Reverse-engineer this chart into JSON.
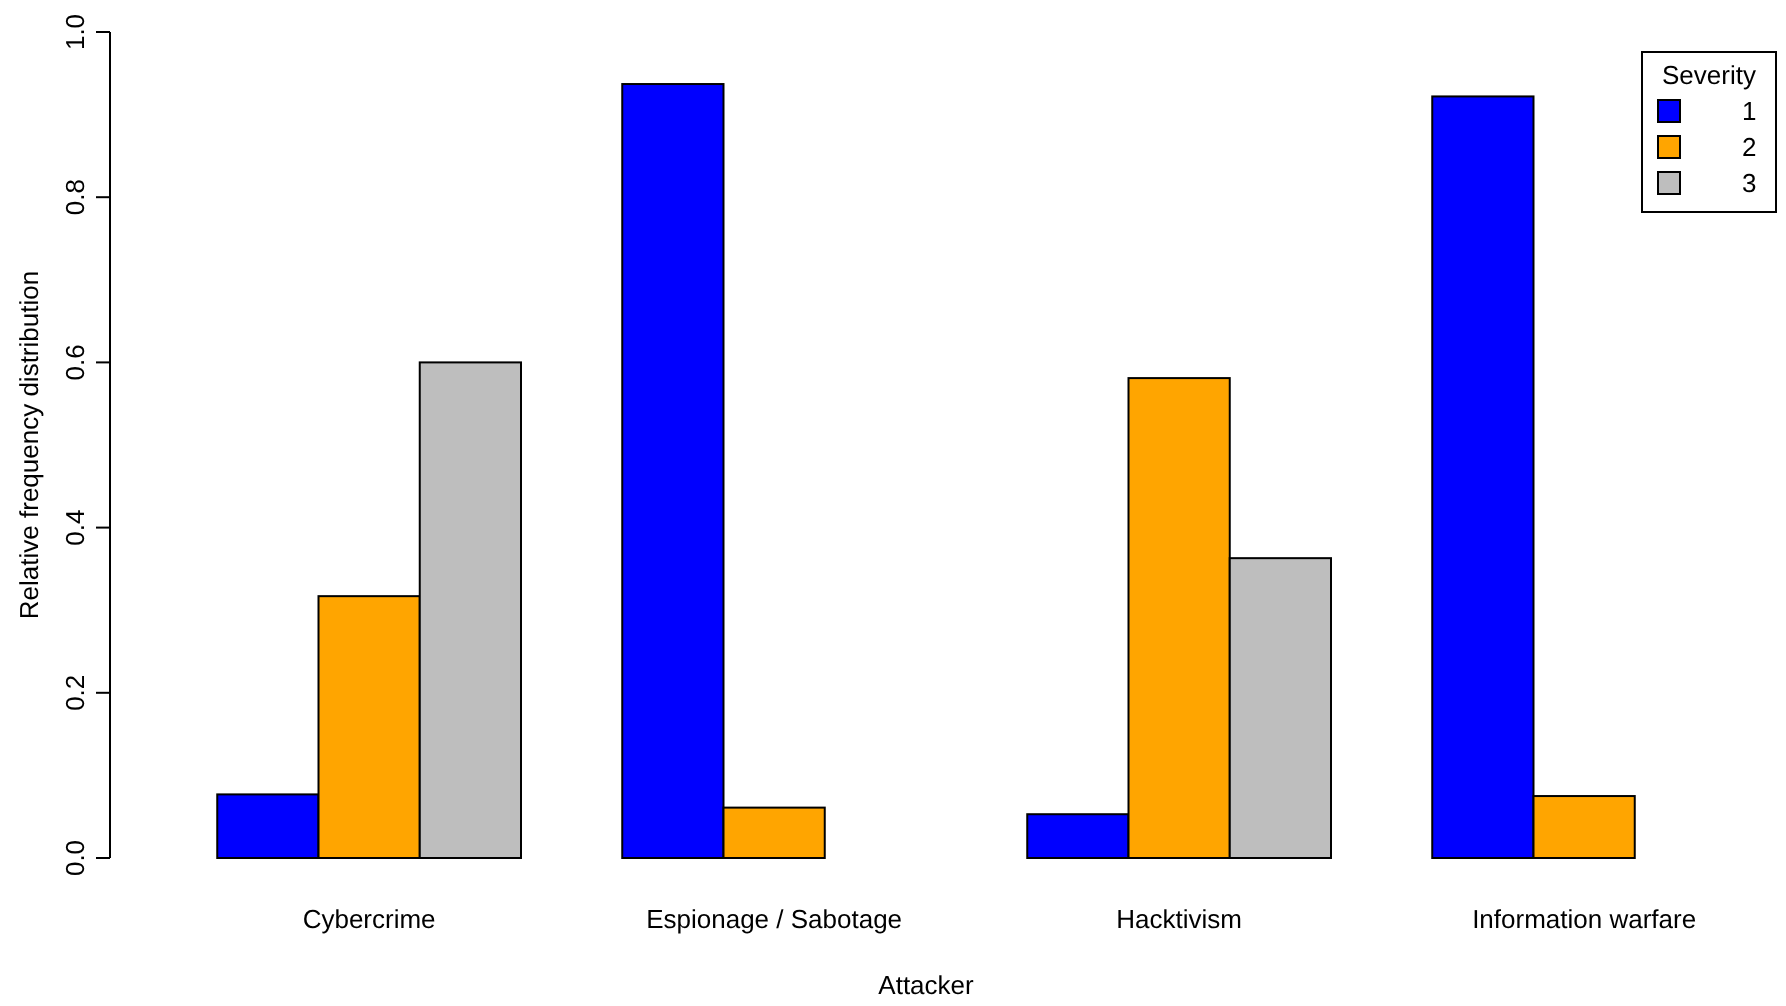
{
  "chart_data": {
    "type": "bar",
    "xlabel": "Attacker",
    "ylabel": "Relative frequency distribution",
    "legend_title": "Severity",
    "legend": "top right",
    "categories": [
      "Cybercrime",
      "Espionage / Sabotage",
      "Hacktivism",
      "Information warfare"
    ],
    "series": [
      {
        "name": "1",
        "color": "#0000ff",
        "values": [
          0.077,
          0.937,
          0.053,
          0.922
        ]
      },
      {
        "name": "2",
        "color": "#ffa500",
        "values": [
          0.317,
          0.061,
          0.581,
          0.075
        ]
      },
      {
        "name": "3",
        "color": "#bebebe",
        "values": [
          0.6,
          0,
          0.363,
          0
        ]
      }
    ],
    "ylim": [
      0,
      1
    ],
    "yticks": [
      {
        "value": 0,
        "label": "0.0"
      },
      {
        "value": 0.2,
        "label": "0.2"
      },
      {
        "value": 0.4,
        "label": "0.4"
      },
      {
        "value": 0.6,
        "label": "0.6"
      },
      {
        "value": 0.8,
        "label": "0.8"
      },
      {
        "value": 1,
        "label": "1.0"
      }
    ]
  }
}
